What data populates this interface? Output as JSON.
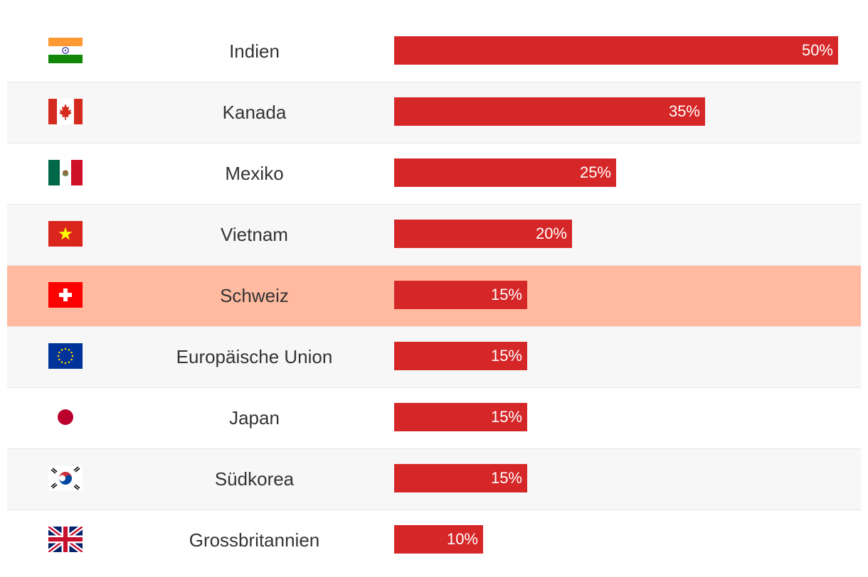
{
  "chart_data": {
    "type": "bar",
    "orientation": "horizontal",
    "title": "",
    "xlabel": "",
    "ylabel": "",
    "xlim": [
      0,
      50
    ],
    "bar_color": "#d62728",
    "highlight_color": "#ffbaa0",
    "categories": [
      "Indien",
      "Kanada",
      "Mexiko",
      "Vietnam",
      "Schweiz",
      "Europäische Union",
      "Japan",
      "Südkorea",
      "Grossbritannien"
    ],
    "flag_icons": [
      "india-flag-icon",
      "canada-flag-icon",
      "mexico-flag-icon",
      "vietnam-flag-icon",
      "switzerland-flag-icon",
      "eu-flag-icon",
      "japan-flag-icon",
      "south-korea-flag-icon",
      "uk-flag-icon"
    ],
    "values": [
      50,
      35,
      25,
      20,
      15,
      15,
      15,
      15,
      10
    ],
    "value_labels": [
      "50%",
      "35%",
      "25%",
      "20%",
      "15%",
      "15%",
      "15%",
      "15%",
      "10%"
    ],
    "highlighted_category": "Schweiz"
  }
}
